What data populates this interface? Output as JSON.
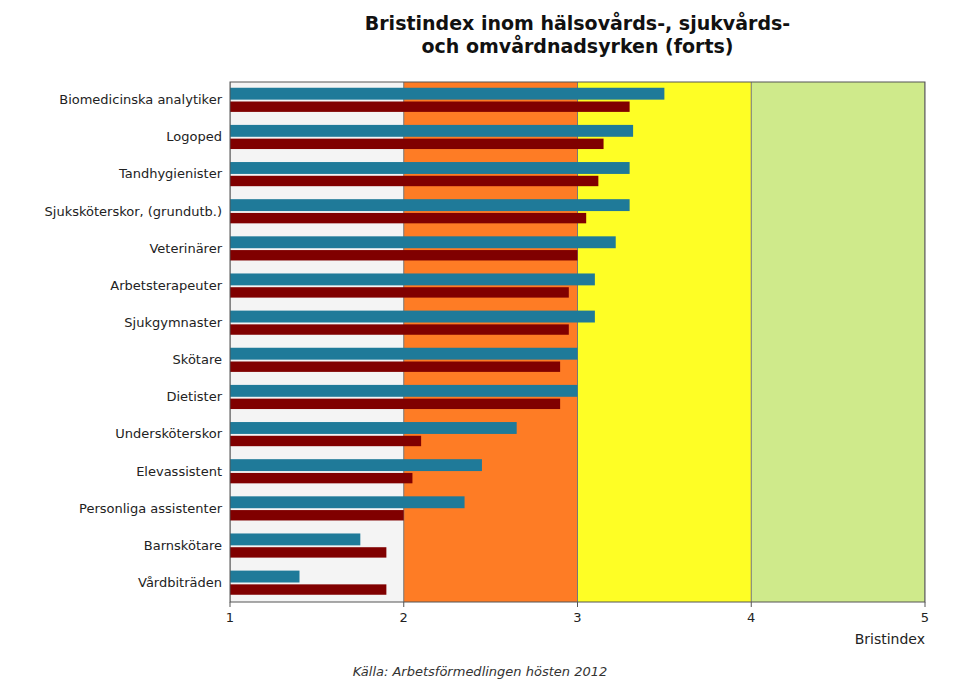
{
  "chart_data": {
    "type": "bar",
    "orientation": "horizontal",
    "title": "Bristindex inom hälsovårds-, sjukvårds-\noch omvårdnadsyrken (forts)",
    "categories": [
      "Biomedicinska analytiker",
      "Logoped",
      "Tandhygienister",
      "Sjuksköterskor, (grundutb.)",
      "Veterinärer",
      "Arbetsterapeuter",
      "Sjukgymnaster",
      "Skötare",
      "Dietister",
      "Undersköterskor",
      "Elevassistent",
      "Personliga assistenter",
      "Barnskötare",
      "Vårdbiträden"
    ],
    "series": [
      {
        "color": "#1f7a99",
        "values": [
          3.5,
          3.32,
          3.3,
          3.3,
          3.22,
          3.1,
          3.1,
          3.0,
          3.0,
          2.65,
          2.45,
          2.35,
          1.75,
          1.4
        ]
      },
      {
        "color": "#800000",
        "values": [
          3.3,
          3.15,
          3.12,
          3.05,
          3.0,
          2.95,
          2.95,
          2.9,
          2.9,
          2.1,
          2.05,
          2.0,
          1.9,
          1.9
        ]
      }
    ],
    "xlabel": "Bristindex",
    "xlim": [
      1,
      5
    ],
    "xticks": [
      1,
      2,
      3,
      4,
      5
    ],
    "zones": [
      {
        "xmin": 2,
        "xmax": 3,
        "color": "#ff6600"
      },
      {
        "xmin": 3,
        "xmax": 4,
        "color": "#ffff00"
      },
      {
        "xmin": 4,
        "xmax": 5,
        "color": "#c8e878"
      }
    ],
    "grid": true,
    "source": "Källa: Arbetsförmedlingen hösten 2012"
  }
}
